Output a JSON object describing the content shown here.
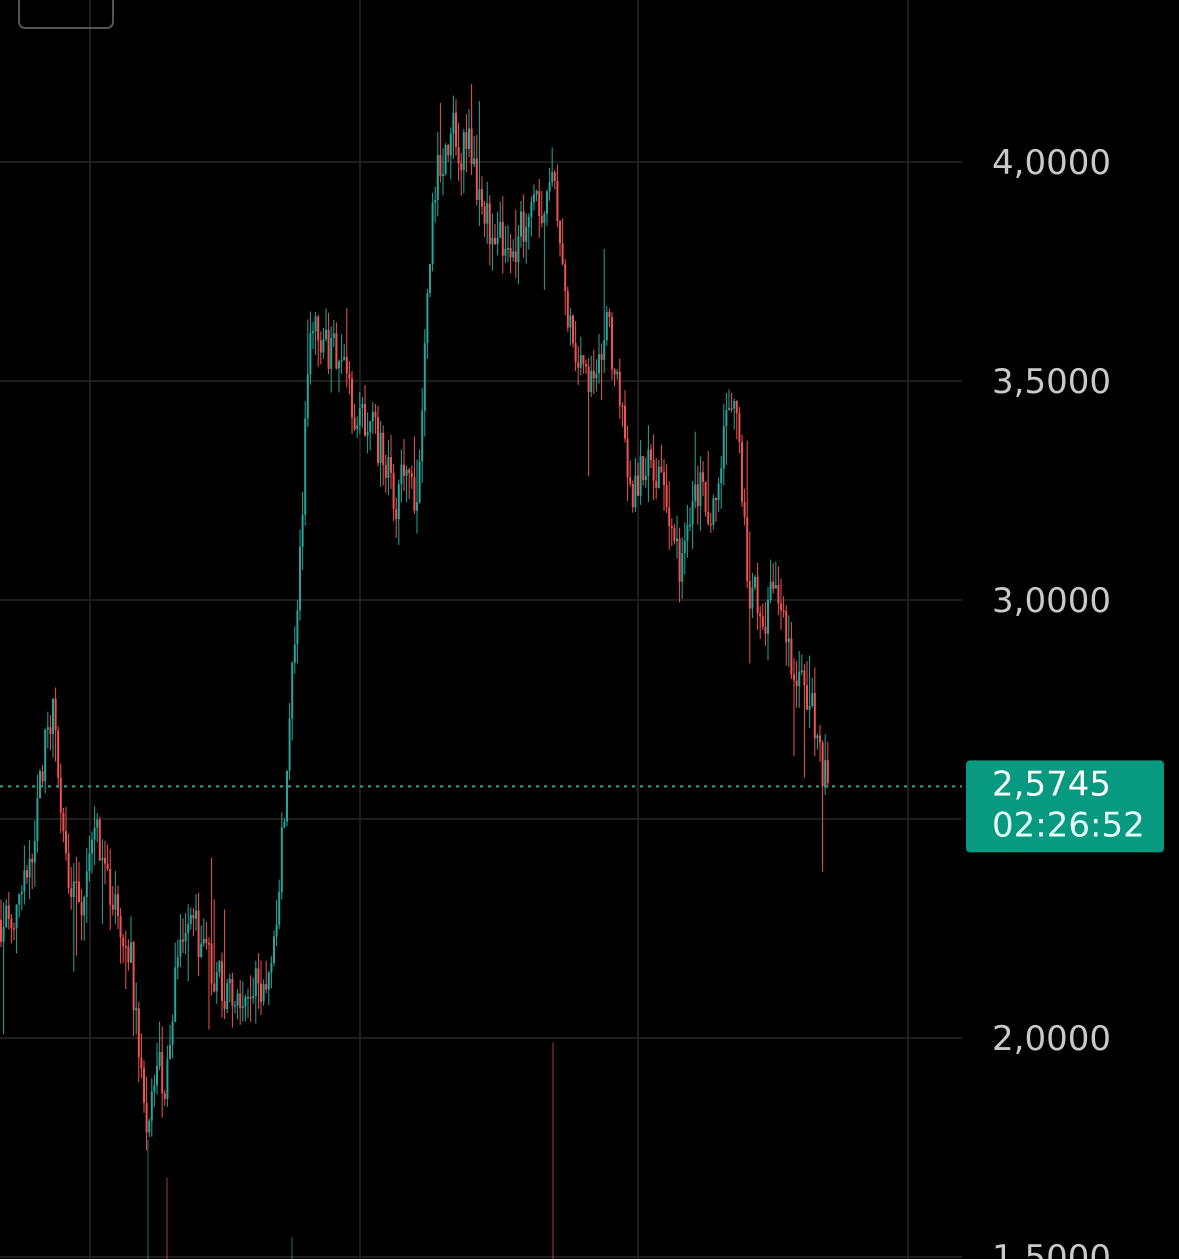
{
  "chart_data": {
    "type": "candlestick",
    "y_ticks": [
      "4,0000",
      "3,5000",
      "3,0000",
      "2,0000",
      "1,5000"
    ],
    "y_tick_values": [
      4.0,
      3.5,
      3.0,
      2.0,
      1.5
    ],
    "ylim": [
      1.45,
      4.37
    ],
    "grid": true,
    "colors": {
      "up": "#26a69a",
      "down": "#ef5350",
      "grid": "#1e1e1e",
      "label_bg": "#089981"
    },
    "last_price": {
      "value": 2.5745,
      "label": "2,5745",
      "countdown": "02:26:52"
    },
    "trend": [
      [
        0,
        2.27
      ],
      [
        15,
        2.28
      ],
      [
        25,
        2.4
      ],
      [
        35,
        2.48
      ],
      [
        45,
        2.7
      ],
      [
        52,
        2.76
      ],
      [
        60,
        2.53
      ],
      [
        70,
        2.33
      ],
      [
        82,
        2.28
      ],
      [
        95,
        2.5
      ],
      [
        105,
        2.38
      ],
      [
        118,
        2.25
      ],
      [
        130,
        2.18
      ],
      [
        140,
        1.9
      ],
      [
        148,
        1.78
      ],
      [
        155,
        1.98
      ],
      [
        165,
        1.88
      ],
      [
        175,
        2.18
      ],
      [
        190,
        2.3
      ],
      [
        200,
        2.2
      ],
      [
        215,
        2.15
      ],
      [
        230,
        2.08
      ],
      [
        250,
        2.12
      ],
      [
        265,
        2.12
      ],
      [
        275,
        2.28
      ],
      [
        285,
        2.55
      ],
      [
        292,
        2.9
      ],
      [
        300,
        3.1
      ],
      [
        306,
        3.5
      ],
      [
        312,
        3.65
      ],
      [
        325,
        3.58
      ],
      [
        340,
        3.55
      ],
      [
        355,
        3.42
      ],
      [
        370,
        3.4
      ],
      [
        385,
        3.3
      ],
      [
        395,
        3.22
      ],
      [
        405,
        3.35
      ],
      [
        415,
        3.22
      ],
      [
        422,
        3.45
      ],
      [
        428,
        3.75
      ],
      [
        433,
        3.95
      ],
      [
        440,
        3.98
      ],
      [
        450,
        4.08
      ],
      [
        460,
        4.02
      ],
      [
        470,
        4.05
      ],
      [
        480,
        3.88
      ],
      [
        490,
        3.85
      ],
      [
        500,
        3.82
      ],
      [
        510,
        3.76
      ],
      [
        520,
        3.85
      ],
      [
        530,
        3.9
      ],
      [
        540,
        3.88
      ],
      [
        550,
        4.02
      ],
      [
        558,
        3.82
      ],
      [
        565,
        3.65
      ],
      [
        575,
        3.55
      ],
      [
        585,
        3.52
      ],
      [
        595,
        3.48
      ],
      [
        605,
        3.65
      ],
      [
        612,
        3.55
      ],
      [
        620,
        3.42
      ],
      [
        630,
        3.25
      ],
      [
        640,
        3.28
      ],
      [
        650,
        3.3
      ],
      [
        660,
        3.25
      ],
      [
        670,
        3.15
      ],
      [
        680,
        3.08
      ],
      [
        690,
        3.2
      ],
      [
        700,
        3.25
      ],
      [
        710,
        3.18
      ],
      [
        720,
        3.32
      ],
      [
        728,
        3.45
      ],
      [
        735,
        3.4
      ],
      [
        742,
        3.25
      ],
      [
        748,
        3.02
      ],
      [
        755,
        3.0
      ],
      [
        765,
        2.95
      ],
      [
        775,
        3.05
      ],
      [
        785,
        2.92
      ],
      [
        795,
        2.82
      ],
      [
        805,
        2.8
      ],
      [
        815,
        2.72
      ],
      [
        822,
        2.6
      ],
      [
        828,
        2.57
      ]
    ],
    "volume_spikes": [
      [
        148,
        0.22
      ],
      [
        167,
        0.15
      ],
      [
        292,
        0.04
      ],
      [
        553,
        0.4
      ]
    ]
  }
}
